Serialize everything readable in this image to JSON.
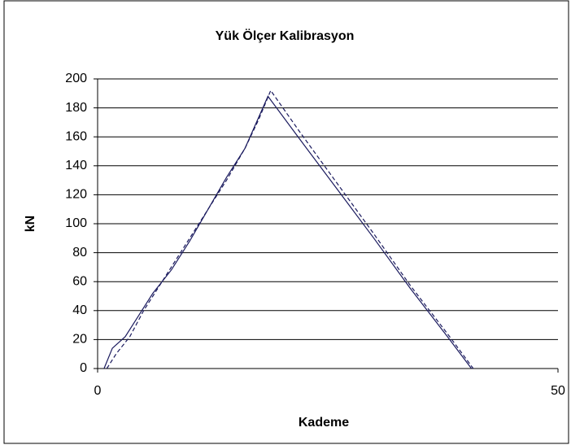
{
  "chart_data": {
    "type": "line",
    "title": "Yük Ölçer Kalibrasyon",
    "x_label": "Kademe",
    "y_label": "kN",
    "xlim": [
      0,
      50
    ],
    "xticks": [
      0,
      50
    ],
    "ylim": [
      0,
      200
    ],
    "yticks": [
      0,
      20,
      40,
      60,
      80,
      100,
      120,
      140,
      160,
      180,
      200
    ],
    "grid": true,
    "series": [
      {
        "color": "#1a1a5e",
        "dash": false,
        "x": [
          0.7,
          1.6,
          3,
          4.5,
          6,
          8,
          10,
          12,
          14,
          16,
          18.5,
          22,
          26,
          30,
          34,
          38,
          40.6
        ],
        "values": [
          0,
          14,
          22,
          37,
          52,
          68,
          88,
          110,
          132,
          152,
          188,
          158,
          124,
          90,
          55,
          22,
          0
        ]
      },
      {
        "color": "#1a1a5e",
        "dash": true,
        "x": [
          1,
          2,
          3.5,
          5,
          6,
          8,
          10,
          12,
          14,
          16,
          17.5,
          18.8,
          22,
          26,
          30,
          34,
          38,
          40.8
        ],
        "values": [
          0,
          10,
          22,
          40,
          50,
          70,
          90,
          110,
          130,
          152,
          172,
          192,
          163,
          128,
          93,
          57,
          24,
          0
        ]
      }
    ]
  }
}
